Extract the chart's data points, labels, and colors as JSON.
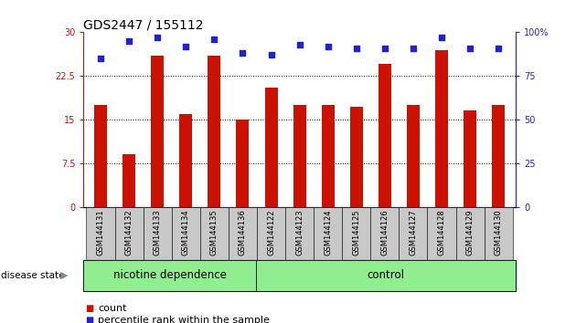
{
  "title": "GDS2447 / 155112",
  "categories": [
    "GSM144131",
    "GSM144132",
    "GSM144133",
    "GSM144134",
    "GSM144135",
    "GSM144136",
    "GSM144122",
    "GSM144123",
    "GSM144124",
    "GSM144125",
    "GSM144126",
    "GSM144127",
    "GSM144128",
    "GSM144129",
    "GSM144130"
  ],
  "bar_values": [
    17.5,
    9.0,
    26.0,
    16.0,
    26.0,
    15.0,
    20.5,
    17.5,
    17.5,
    17.2,
    24.5,
    17.5,
    27.0,
    16.5,
    17.5
  ],
  "dot_values": [
    85,
    95,
    97,
    92,
    96,
    88,
    87,
    93,
    92,
    91,
    91,
    91,
    97,
    91,
    91
  ],
  "bar_color": "#cc1100",
  "dot_color": "#2222cc",
  "ylim_left": [
    0,
    30
  ],
  "ylim_right": [
    0,
    100
  ],
  "yticks_left": [
    0,
    7.5,
    15,
    22.5,
    30
  ],
  "ytick_labels_left": [
    "0",
    "7.5",
    "15",
    "22.5",
    "30"
  ],
  "yticks_right": [
    0,
    25,
    50,
    75,
    100
  ],
  "ytick_labels_right": [
    "0",
    "25",
    "50",
    "75",
    "100%"
  ],
  "grid_values": [
    7.5,
    15,
    22.5
  ],
  "group1_label": "nicotine dependence",
  "group2_label": "control",
  "group1_count": 6,
  "group2_count": 9,
  "disease_state_label": "disease state",
  "legend_bar_label": "count",
  "legend_dot_label": "percentile rank within the sample",
  "group_bg_color": "#90EE90",
  "tick_label_bg": "#c8c8c8",
  "title_fontsize": 10,
  "tick_fontsize": 7,
  "group_fontsize": 8.5,
  "legend_fontsize": 8
}
